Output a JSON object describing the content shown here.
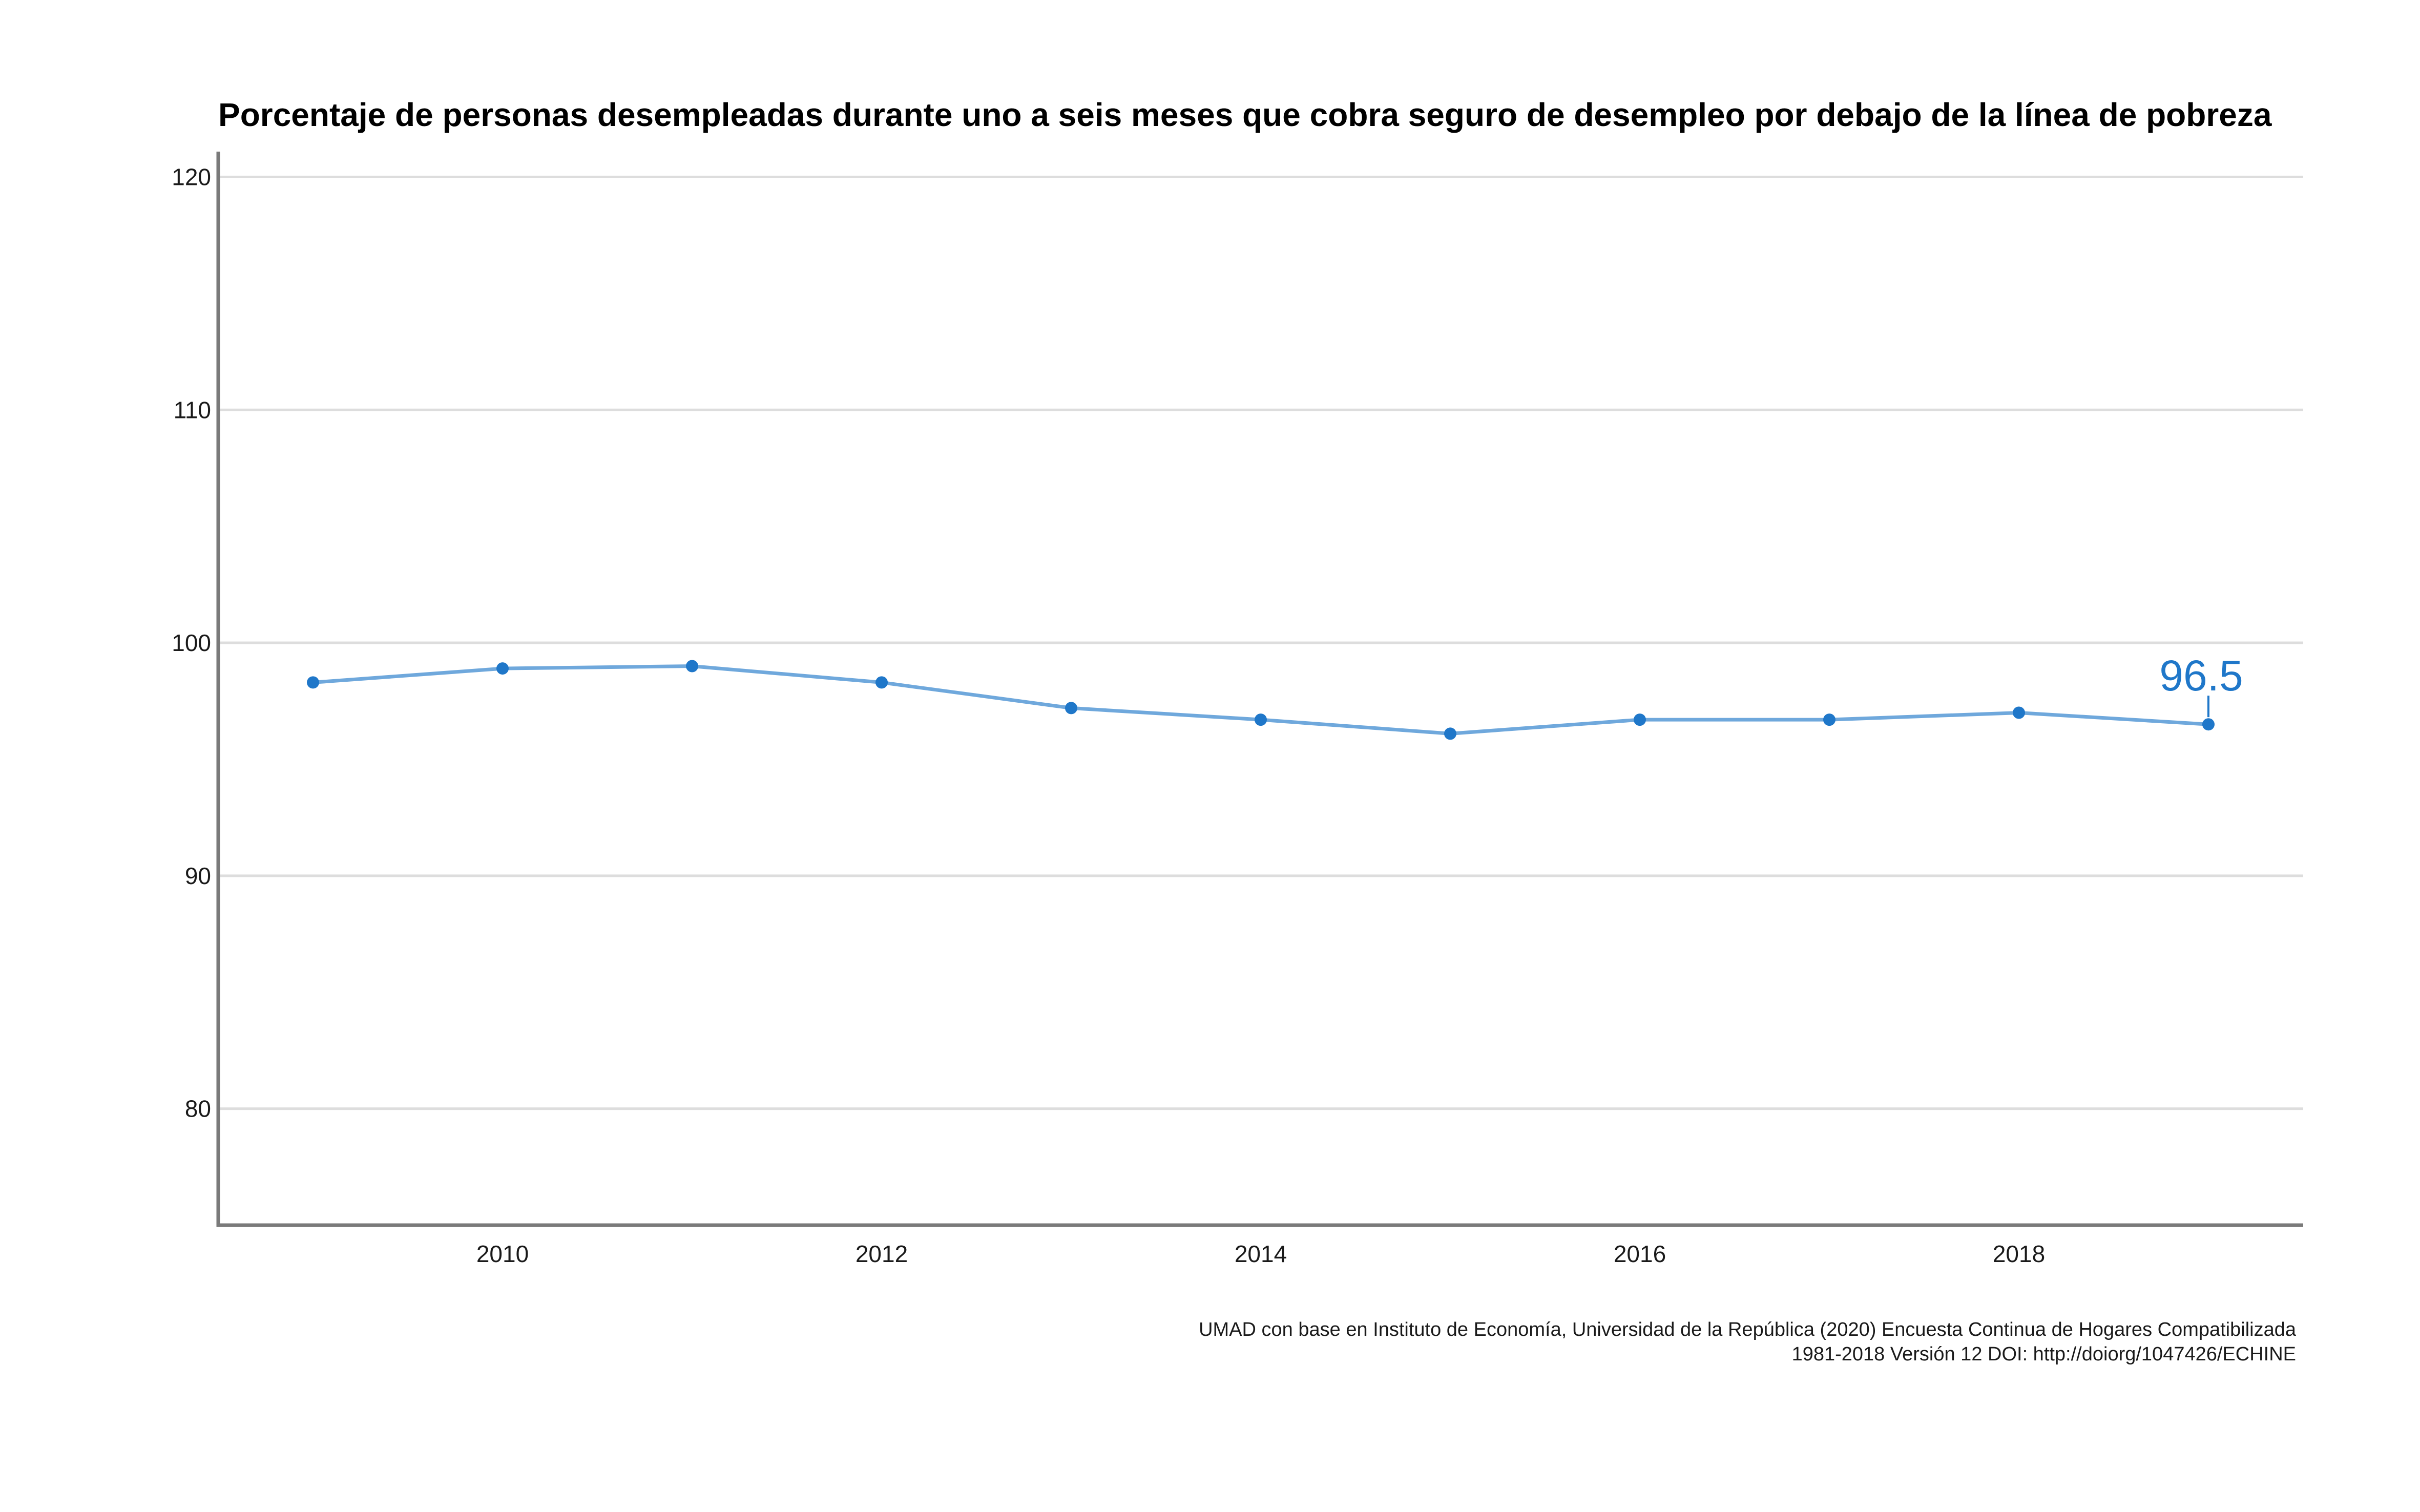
{
  "chart_data": {
    "type": "line",
    "title": "Porcentaje de personas desempleadas durante uno a seis meses que cobra seguro de desempleo por debajo de la línea de pobreza",
    "xlabel": "",
    "ylabel": "",
    "x": [
      2009,
      2010,
      2011,
      2012,
      2013,
      2014,
      2015,
      2016,
      2017,
      2018,
      2019
    ],
    "series": [
      {
        "values": [
          98.3,
          98.9,
          99.0,
          98.3,
          97.2,
          96.7,
          96.1,
          96.7,
          96.7,
          97.0,
          96.5
        ]
      }
    ],
    "xticks": [
      2010,
      2012,
      2014,
      2016,
      2018
    ],
    "yticks": [
      80,
      90,
      100,
      110,
      120
    ],
    "xlim": [
      2008.5,
      2019.5
    ],
    "ylim": [
      75,
      121
    ],
    "grid": "horizontal",
    "end_label": "96.5",
    "caption": [
      "UMAD con base en Instituto de Economía, Universidad de la República (2020) Encuesta Continua de Hogares Compatibilizada",
      "1981-2018 Versión 12 DOI: http://doiorg/1047426/ECHINE"
    ],
    "colors": {
      "line": "#6fa8dc",
      "point": "#1f77c9",
      "grid": "#dddddd",
      "axis": "#7a7a7a"
    }
  }
}
